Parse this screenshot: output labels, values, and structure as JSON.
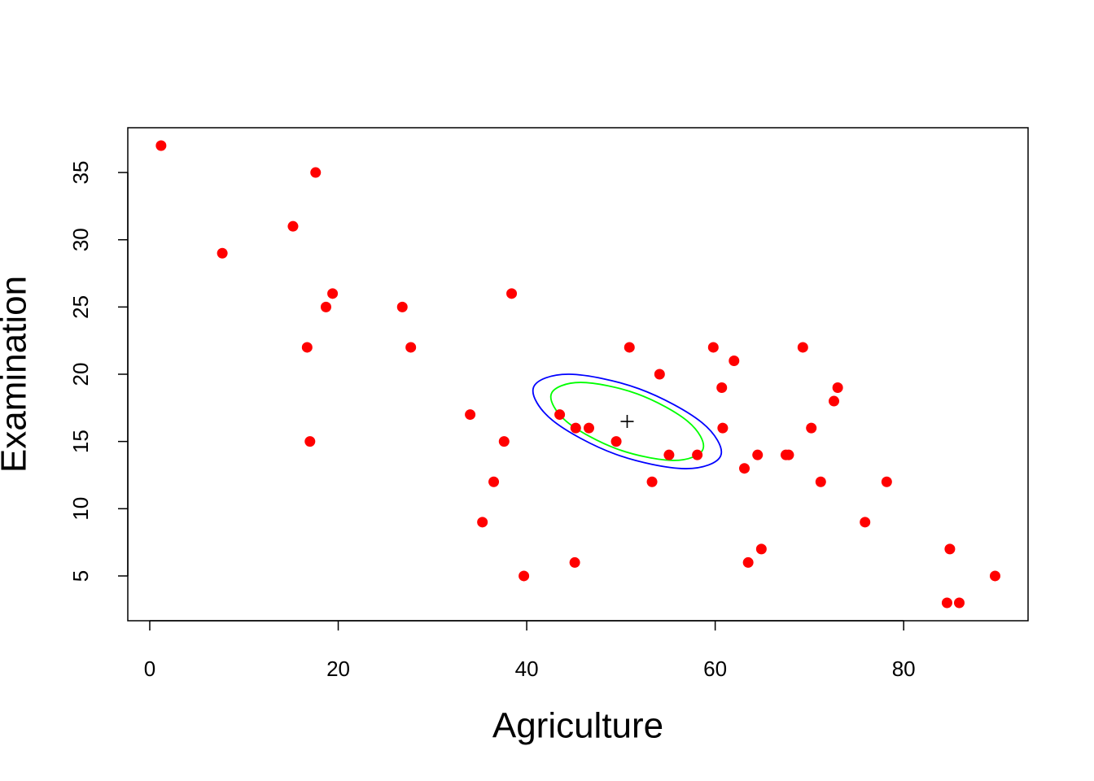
{
  "chart_data": {
    "type": "scatter",
    "x_label": "Agriculture",
    "y_label": "Examination",
    "series": [
      {
        "color": "#ff0000",
        "x": [
          1.2,
          7.7,
          15.2,
          17.6,
          16.7,
          17.0,
          18.7,
          19.4,
          26.8,
          27.7,
          34.0,
          35.3,
          36.5,
          37.6,
          38.4,
          39.7,
          43.5,
          45.1,
          45.2,
          46.6,
          49.5,
          50.9,
          53.3,
          54.1,
          55.1,
          58.1,
          59.8,
          60.7,
          60.8,
          62.0,
          63.1,
          63.5,
          64.5,
          64.9,
          67.5,
          67.8,
          69.3,
          70.2,
          71.2,
          72.6,
          73.0,
          75.9,
          78.2,
          84.6,
          84.9,
          85.9,
          89.7
        ],
        "values": [
          37,
          29,
          31,
          35,
          22,
          15,
          25,
          26,
          25,
          22,
          17,
          9,
          12,
          15,
          26,
          5,
          17,
          6,
          16,
          16,
          15,
          22,
          12,
          20,
          14,
          14,
          22,
          19,
          16,
          21,
          13,
          6,
          14,
          7,
          14,
          14,
          22,
          16,
          12,
          18,
          19,
          9,
          12,
          3,
          7,
          3,
          5
        ]
      }
    ],
    "center": {
      "x": 50.66,
      "y": 16.49
    },
    "ellipses": [
      {
        "color": "#0000ff",
        "x": [
          60.6,
          56.8,
          49.4,
          42.74,
          40.72,
          44.52,
          51.92,
          58.58
        ],
        "y": [
          13.96,
          12.98,
          14.06,
          16.57,
          19.02,
          20.0,
          18.92,
          16.41
        ]
      },
      {
        "color": "#00ff00",
        "x": [
          58.71,
          55.6,
          49.6,
          44.22,
          42.61,
          45.72,
          51.72,
          57.1
        ],
        "y": [
          14.44,
          13.59,
          14.44,
          16.49,
          18.54,
          19.39,
          18.54,
          16.49
        ]
      }
    ],
    "xlim": [
      -2.33,
      93.2
    ],
    "ylim": [
      1.67,
      38.33
    ],
    "xticks": [
      0,
      20,
      40,
      60,
      80
    ],
    "yticks": [
      5,
      10,
      15,
      20,
      25,
      30,
      35
    ]
  }
}
